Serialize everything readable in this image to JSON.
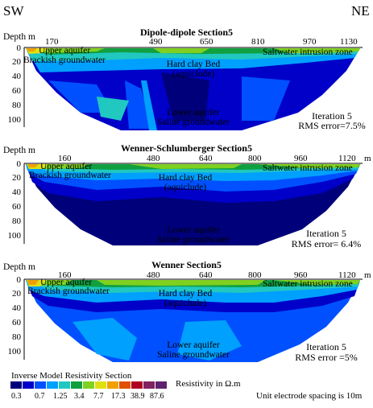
{
  "directions": {
    "left": "SW",
    "right": "NE"
  },
  "depth_label": "Depth m",
  "distance_unit": "m",
  "sections": [
    {
      "title": "Dipole-dipole Section5",
      "x_ticks": [
        "170",
        "490",
        "650",
        "810",
        "970",
        "1130"
      ],
      "y_ticks": [
        "0",
        "20",
        "40",
        "60",
        "80",
        "100"
      ],
      "annotations": {
        "upper": "Upper aquifer",
        "brackish": "Brackish groundwater",
        "clay": "Hard clay Bed",
        "aquiclude": "(aquiclude)",
        "saltwater": "Saltwater intrusion zone",
        "lower": "Lower aquifer",
        "saline": "Saline groundwater"
      },
      "iteration": "Iteration 5",
      "rms": "RMS error=7.5%"
    },
    {
      "title": "Wenner-Schlumberger Section5",
      "x_ticks": [
        "160",
        "480",
        "640",
        "800",
        "960",
        "1120"
      ],
      "y_ticks": [
        "0",
        "20",
        "40",
        "60",
        "80",
        "100"
      ],
      "annotations": {
        "upper": "Upper aquifer",
        "brackish": "Brackish groundwater",
        "clay": "Hard clay Bed",
        "aquiclude": "(aquiclude)",
        "saltwater": "Saltwater intrusion zone",
        "lower": "Lower aquifer",
        "saline": "Saline groundwater"
      },
      "iteration": "Iteration 5",
      "rms": "RMS error= 6.4%"
    },
    {
      "title": "Wenner Section5",
      "x_ticks": [
        "160",
        "480",
        "640",
        "800",
        "960",
        "1120"
      ],
      "y_ticks": [
        "0",
        "20",
        "40",
        "60",
        "80",
        "100"
      ],
      "annotations": {
        "upper": "Upper aquifer",
        "brackish": "Brackish groundwater",
        "clay": "Hard clay Bed",
        "aquiclude": "(aquiclude)",
        "saltwater": "Saltwater intrusion zone",
        "lower": "Lower aquifer",
        "saline": "Saline groundwater"
      },
      "iteration": "Iteration 5",
      "rms": "RMS error =5%"
    }
  ],
  "legend": {
    "title": "Inverse Model Resistivity Section",
    "unit_label": "Resistivity in Ω.m",
    "values": [
      "0.3",
      "0.7",
      "1.25",
      "3.4",
      "7.7",
      "17.3",
      "38.9",
      "87.6"
    ],
    "colors": [
      "#00007a",
      "#0000c8",
      "#0050ff",
      "#00a0ff",
      "#20c8c0",
      "#10a040",
      "#80d020",
      "#e0e010",
      "#f0a000",
      "#e05000",
      "#b00020",
      "#802060",
      "#602070"
    ]
  },
  "footer": "Unit electrode spacing is 10m"
}
